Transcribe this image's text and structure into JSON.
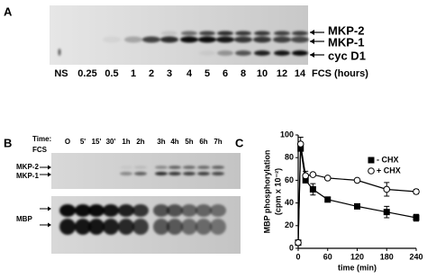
{
  "panel_a": {
    "letter": "A",
    "lanes": [
      "NS",
      "0.25",
      "0.5",
      "1",
      "2",
      "3",
      "4",
      "5",
      "6",
      "8",
      "10",
      "12",
      "14"
    ],
    "lane_axis_label": "FCS (hours)",
    "bands": [
      "MKP-2",
      "MKP-1",
      "cyc D1"
    ]
  },
  "panel_b": {
    "letter": "B",
    "time_label": "Time:",
    "treatment_label": "FCS",
    "lanes": [
      "O",
      "5'",
      "15'",
      "30'",
      "1h",
      "2h",
      "3h",
      "4h",
      "5h",
      "6h",
      "7h"
    ],
    "upper_bands": [
      "MKP-2",
      "MKP-1"
    ],
    "lower_band": "MBP"
  },
  "chart_data": {
    "type": "line",
    "panel_letter": "C",
    "x_label": "time (min)",
    "y_label": [
      "MBP phosphorylation",
      "(cpm x 10⁻²)"
    ],
    "x": [
      0,
      5,
      15,
      30,
      60,
      120,
      180,
      240
    ],
    "series": [
      {
        "name": "- CHX",
        "color": "#000000",
        "marker": "square",
        "filled": true,
        "values": [
          5,
          88,
          60,
          52,
          43,
          37,
          32,
          27
        ],
        "errors": [
          null,
          null,
          null,
          5,
          null,
          null,
          5,
          3
        ]
      },
      {
        "name": "+ CHX",
        "color": "#000000",
        "marker": "circle",
        "filled": false,
        "values": [
          5,
          92,
          64,
          65,
          62,
          60,
          52,
          50
        ],
        "errors": [
          null,
          6,
          4,
          null,
          null,
          null,
          6,
          2
        ]
      }
    ],
    "xlim": [
      0,
      240
    ],
    "xticks": [
      0,
      60,
      120,
      180,
      240
    ],
    "ylim": [
      0,
      100
    ],
    "yticks": [
      0,
      20,
      40,
      60,
      80,
      100
    ],
    "legend": "upper right"
  }
}
